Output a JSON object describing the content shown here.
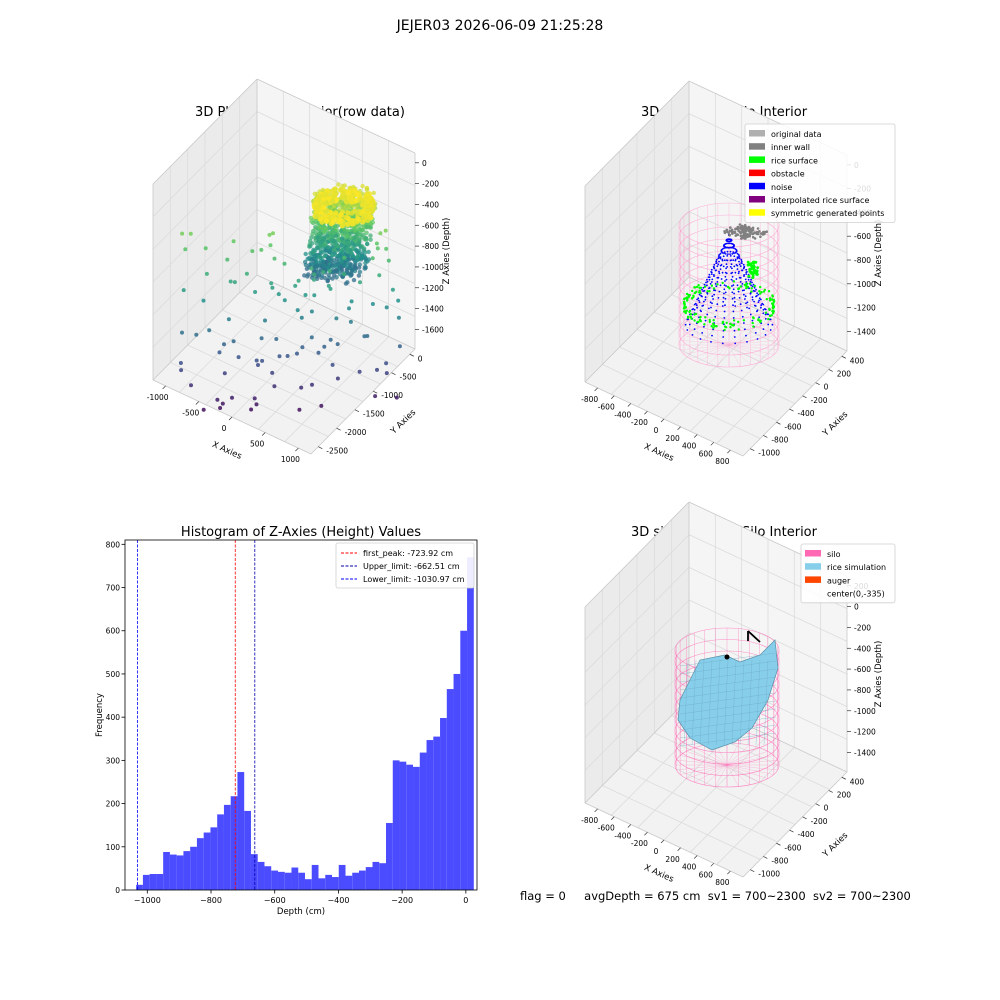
{
  "figure": {
    "suptitle": "JEJER03 2026-06-09 21:25:28",
    "status": {
      "flag": "flag = 0",
      "avgDepth": "avgDepth = 675 cm",
      "sv1": "sv1 = 700~2300",
      "sv2": "sv2 = 700~2300"
    }
  },
  "chart_data": [
    {
      "type": "scatter",
      "projection": "3d",
      "title": "3D Plot of Silo Interior(row data)",
      "xlabel": "X Axies",
      "ylabel": "Y Axies",
      "zlabel": "Z Axies (Depth)",
      "xticks": [
        "-1000",
        "-500",
        "0",
        "500",
        "1000"
      ],
      "yticks": [
        "0",
        "-500",
        "-1000",
        "-1500",
        "-2000",
        "-2500"
      ],
      "zticks": [
        "0",
        "-200",
        "-400",
        "-600",
        "-800",
        "-1000",
        "-1200",
        "-1400",
        "-1600"
      ],
      "colormap": "viridis",
      "colormap_stops": [
        "#440154",
        "#3b528b",
        "#21918c",
        "#5ec962",
        "#fde725"
      ]
    },
    {
      "type": "scatter",
      "projection": "3d",
      "title": "3D classify of Silo Interior",
      "xlabel": "X Axies",
      "ylabel": "Y Axies",
      "zlabel": "Z Axies (Depth)",
      "xticks": [
        "-800",
        "-600",
        "-400",
        "-200",
        "0",
        "200",
        "400",
        "600",
        "800"
      ],
      "yticks": [
        "400",
        "200",
        "0",
        "-200",
        "-400",
        "-600",
        "-800",
        "-1000"
      ],
      "zticks": [
        "0",
        "-200",
        "-400",
        "-600",
        "-800",
        "-1000",
        "-1200",
        "-1400"
      ],
      "legend_position": "top-right",
      "legend": [
        {
          "label": "original data",
          "color": "#b0b0b0"
        },
        {
          "label": "inner wall",
          "color": "#808080"
        },
        {
          "label": "rice surface",
          "color": "#00ff00"
        },
        {
          "label": "obstacle",
          "color": "#ff0000"
        },
        {
          "label": "noise",
          "color": "#0000ff"
        },
        {
          "label": "interpolated rice surface",
          "color": "#800080"
        },
        {
          "label": "symmetric generated points",
          "color": "#ffff00"
        }
      ]
    },
    {
      "type": "bar",
      "subtype": "histogram",
      "title": "Histogram of Z-Axies (Height) Values",
      "xlabel": "Depth (cm)",
      "ylabel": "Frequency",
      "xlim": [
        -1070,
        35
      ],
      "ylim": [
        0,
        810
      ],
      "xticks": [
        -1000,
        -800,
        -600,
        -400,
        -200,
        0
      ],
      "yticks": [
        0,
        100,
        200,
        300,
        400,
        500,
        600,
        700,
        800
      ],
      "bin_start": -1035,
      "bin_width": 21.2,
      "values": [
        12,
        35,
        37,
        37,
        88,
        82,
        80,
        90,
        100,
        120,
        133,
        145,
        175,
        197,
        217,
        273,
        183,
        83,
        65,
        55,
        45,
        42,
        40,
        52,
        40,
        25,
        58,
        27,
        35,
        30,
        58,
        33,
        40,
        45,
        53,
        65,
        62,
        155,
        300,
        297,
        290,
        285,
        318,
        347,
        355,
        398,
        465,
        500,
        600,
        770
      ],
      "bar_color": "#4b4bff",
      "lines": [
        {
          "label": "first_peak: -723.92 cm",
          "x": -723.92,
          "color": "#ff0000"
        },
        {
          "label": "Upper_limit: -662.51 cm",
          "x": -662.51,
          "color": "#0000aa"
        },
        {
          "label": "Lower_limit: -1030.97 cm",
          "x": -1030.97,
          "color": "#0000ff"
        }
      ],
      "legend_position": "top-right"
    },
    {
      "type": "surface",
      "projection": "3d",
      "title": "3D simulation of Silo Interior",
      "xlabel": "X Axies",
      "ylabel": "Y Axies",
      "zlabel": "Z Axies (Depth)",
      "xticks": [
        "-800",
        "-600",
        "-400",
        "-200",
        "0",
        "200",
        "400",
        "600",
        "800"
      ],
      "yticks": [
        "400",
        "200",
        "0",
        "-200",
        "-400",
        "-600",
        "-800",
        "-1000"
      ],
      "zticks": [
        "200",
        "0",
        "-200",
        "-400",
        "-600",
        "-800",
        "-1000",
        "-1200",
        "-1400"
      ],
      "legend_position": "top-right",
      "legend": [
        {
          "label": "silo",
          "color": "#ff69b4"
        },
        {
          "label": "rice simulation",
          "color": "#87ceeb"
        },
        {
          "label": "auger",
          "color": "#ff4500"
        },
        {
          "label": "center(0,-335)",
          "color": ""
        }
      ]
    }
  ]
}
